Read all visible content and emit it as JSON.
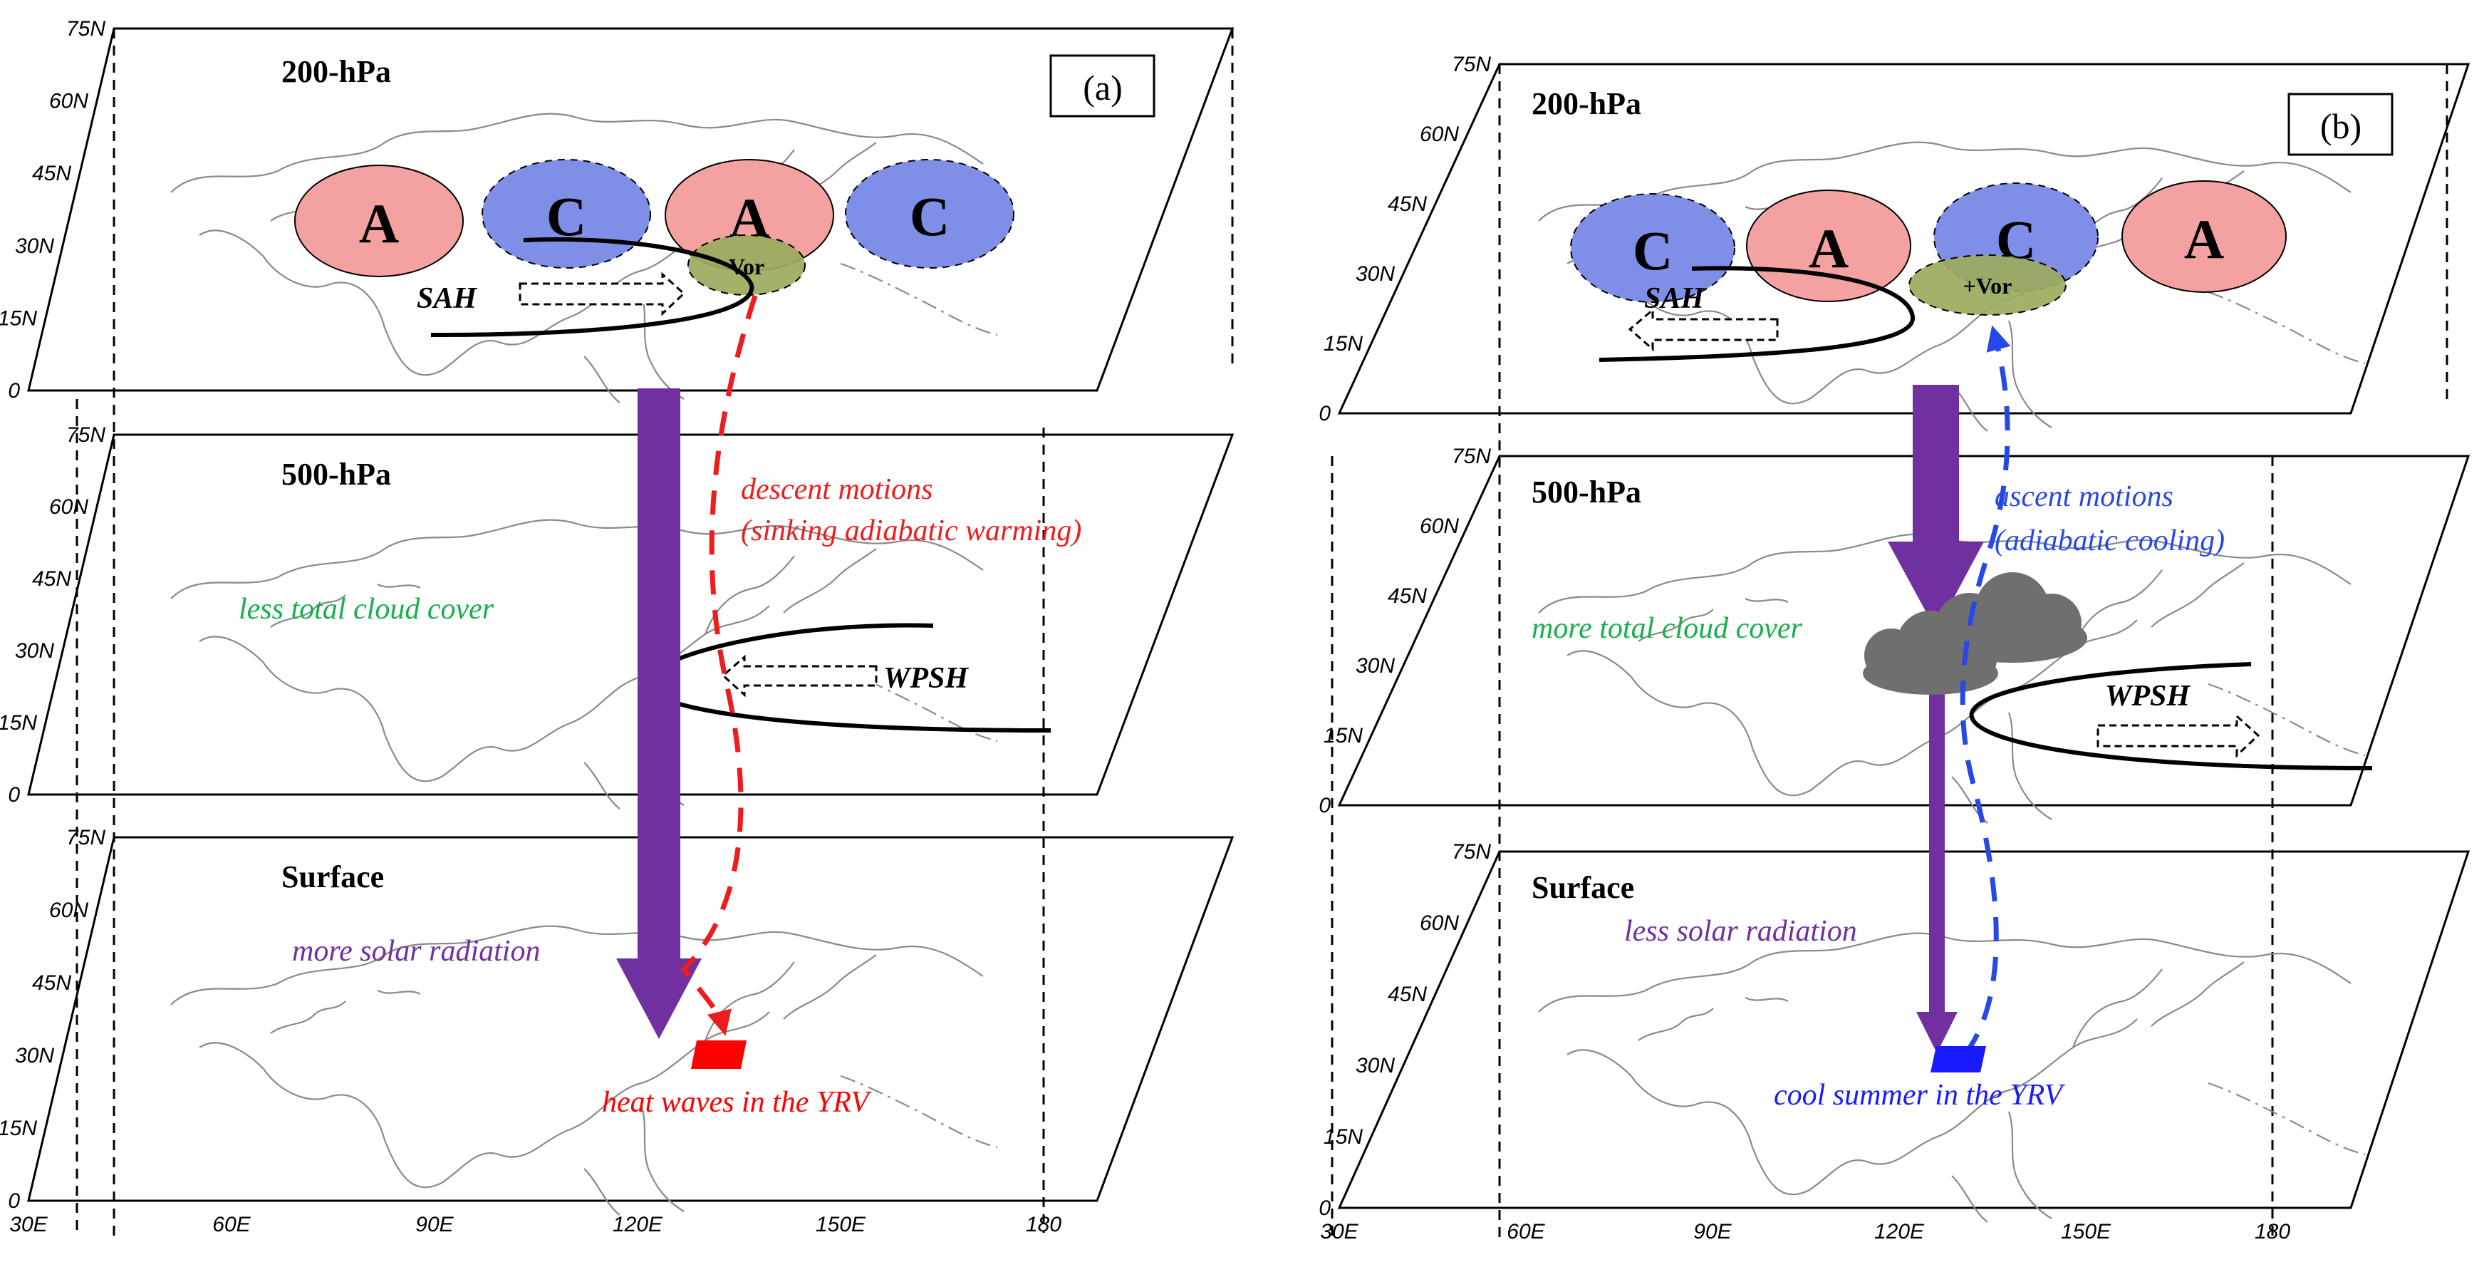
{
  "panels": [
    {
      "id": "a",
      "panel_label": "(a)",
      "levels": [
        "200-hPa",
        "500-hPa",
        "Surface"
      ],
      "anomaly_centers": [
        "A",
        "C",
        "A",
        "C"
      ],
      "vorticity_label": "Vor",
      "sah_label": "SAH",
      "wpsh_label": "WPSH",
      "motion_label": "descent motions",
      "motion_note": "(sinking adiabatic warming)",
      "cloud_label": "less total cloud cover",
      "radiation_label": "more solar radiation",
      "outcome_label": "heat waves in the YRV",
      "motion_color": "#ee1c1c",
      "outcome_color": "#ff0000"
    },
    {
      "id": "b",
      "panel_label": "(b)",
      "levels": [
        "200-hPa",
        "500-hPa",
        "Surface"
      ],
      "anomaly_centers": [
        "C",
        "A",
        "C",
        "A"
      ],
      "vorticity_label": "+Vor",
      "sah_label": "SAH",
      "wpsh_label": "WPSH",
      "motion_label": "ascent motions",
      "motion_note": "(adiabatic cooling)",
      "cloud_label": "more total cloud cover",
      "radiation_label": "less solar radiation",
      "outcome_label": "cool summer in the YRV",
      "motion_color": "#2748e8",
      "outcome_color": "#1a1aff"
    }
  ],
  "lat_ticks": [
    "75N",
    "60N",
    "45N",
    "30N",
    "15N",
    "0"
  ],
  "lon_ticks": [
    "30E",
    "60E",
    "90E",
    "120E",
    "150E",
    "180"
  ],
  "colors": {
    "anticyclone": "#f4a1a1",
    "cyclone": "#7f8fe8",
    "vorticity": "#9aab5e",
    "solar_arrow": "#7030a0",
    "cloud_label": "#16b04a",
    "cloud": "#6f6f6f"
  }
}
